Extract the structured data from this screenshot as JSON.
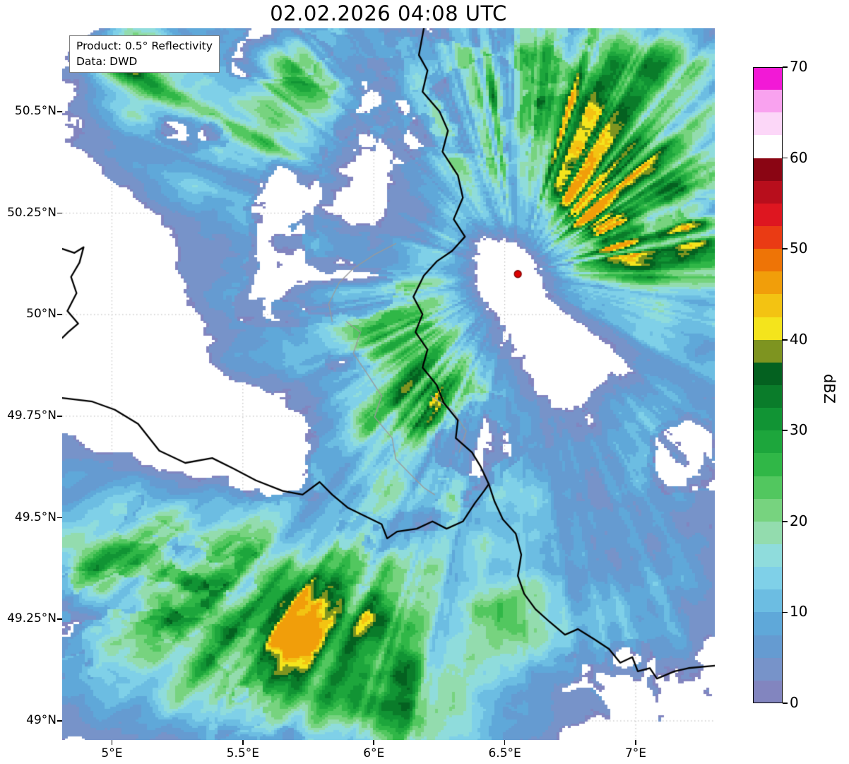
{
  "title": "02.02.2026 04:08 UTC",
  "info_box": {
    "line1": "Product: 0.5° Reflectivity",
    "line2": "Data: DWD"
  },
  "axes": {
    "lon_range": [
      4.81,
      7.302
    ],
    "lat_range": [
      48.953,
      50.705
    ],
    "lat_ticks": [
      {
        "value": 50.5,
        "label": "50.5°N"
      },
      {
        "value": 50.25,
        "label": "50.25°N"
      },
      {
        "value": 50.0,
        "label": "50°N"
      },
      {
        "value": 49.75,
        "label": "49.75°N"
      },
      {
        "value": 49.5,
        "label": "49.5°N"
      },
      {
        "value": 49.25,
        "label": "49.25°N"
      },
      {
        "value": 49.0,
        "label": "49°N"
      }
    ],
    "lon_ticks": [
      {
        "value": 5.0,
        "label": "5°E"
      },
      {
        "value": 5.5,
        "label": "5.5°E"
      },
      {
        "value": 6.0,
        "label": "6°E"
      },
      {
        "value": 6.5,
        "label": "6.5°E"
      },
      {
        "value": 7.0,
        "label": "7°E"
      }
    ]
  },
  "colorbar": {
    "label": "dBZ",
    "min": 0,
    "max": 70,
    "step": 2.5,
    "ticks": [
      0,
      10,
      20,
      30,
      40,
      50,
      60,
      70
    ],
    "colors": [
      "#8285bf",
      "#7793c9",
      "#659bd1",
      "#5fa8d9",
      "#6cbde2",
      "#7fd0e8",
      "#8fdcdc",
      "#93dcae",
      "#77d37f",
      "#52c75f",
      "#30b747",
      "#1da63c",
      "#119434",
      "#0a7c2a",
      "#046120",
      "#7e9420",
      "#f4e41c",
      "#f3c312",
      "#f19e0a",
      "#ee7406",
      "#ea3b14",
      "#de1620",
      "#b80e1c",
      "#8a0513",
      "#ffffff",
      "#fcd7f8",
      "#f9a2ef",
      "#f219d6"
    ]
  },
  "radar_site": {
    "lon": 6.55,
    "lat": 50.1,
    "marker_color": "#dd0000",
    "marker_edge": "#7a0000"
  },
  "map": {
    "background": "#ffffff",
    "grid_color": "#b3b3b3",
    "country_border_color": "#000000",
    "region_border_color": "#9a9a9a"
  },
  "borders": {
    "country": [
      [
        [
          6.191,
          50.705
        ],
        [
          6.172,
          50.639
        ],
        [
          6.205,
          50.601
        ],
        [
          6.186,
          50.549
        ],
        [
          6.251,
          50.5
        ],
        [
          6.283,
          50.453
        ],
        [
          6.262,
          50.401
        ],
        [
          6.321,
          50.343
        ],
        [
          6.34,
          50.288
        ],
        [
          6.305,
          50.235
        ],
        [
          6.348,
          50.192
        ],
        [
          6.299,
          50.157
        ],
        [
          6.24,
          50.131
        ],
        [
          6.191,
          50.096
        ],
        [
          6.151,
          50.044
        ],
        [
          6.186,
          50.001
        ],
        [
          6.159,
          49.957
        ],
        [
          6.205,
          49.914
        ],
        [
          6.186,
          49.87
        ],
        [
          6.24,
          49.827
        ],
        [
          6.267,
          49.783
        ],
        [
          6.321,
          49.74
        ],
        [
          6.313,
          49.696
        ],
        [
          6.375,
          49.661
        ],
        [
          6.407,
          49.627
        ],
        [
          6.439,
          49.583
        ],
        [
          6.461,
          49.54
        ],
        [
          6.493,
          49.496
        ],
        [
          6.542,
          49.461
        ],
        [
          6.563,
          49.409
        ],
        [
          6.55,
          49.357
        ],
        [
          6.574,
          49.313
        ],
        [
          6.617,
          49.275
        ],
        [
          6.671,
          49.244
        ],
        [
          6.73,
          49.212
        ],
        [
          6.779,
          49.226
        ],
        [
          6.844,
          49.2
        ],
        [
          6.898,
          49.177
        ],
        [
          6.941,
          49.143
        ],
        [
          6.987,
          49.157
        ],
        [
          7.008,
          49.122
        ],
        [
          7.054,
          49.13
        ],
        [
          7.081,
          49.104
        ],
        [
          7.148,
          49.122
        ],
        [
          7.202,
          49.13
        ],
        [
          7.302,
          49.136
        ]
      ],
      [
        [
          4.811,
          50.162
        ],
        [
          4.857,
          50.152
        ],
        [
          4.892,
          50.166
        ],
        [
          4.876,
          50.128
        ],
        [
          4.844,
          50.093
        ],
        [
          4.865,
          50.053
        ],
        [
          4.83,
          50.009
        ],
        [
          4.871,
          49.978
        ],
        [
          4.833,
          49.957
        ],
        [
          4.811,
          49.943
        ]
      ],
      [
        [
          4.811,
          49.795
        ],
        [
          4.925,
          49.786
        ],
        [
          5.011,
          49.766
        ],
        [
          5.1,
          49.731
        ],
        [
          5.181,
          49.665
        ],
        [
          5.28,
          49.635
        ],
        [
          5.383,
          49.647
        ],
        [
          5.464,
          49.621
        ],
        [
          5.55,
          49.592
        ],
        [
          5.652,
          49.566
        ],
        [
          5.728,
          49.557
        ],
        [
          5.793,
          49.588
        ],
        [
          5.841,
          49.557
        ],
        [
          5.9,
          49.525
        ],
        [
          5.976,
          49.501
        ],
        [
          6.03,
          49.484
        ],
        [
          6.051,
          49.449
        ],
        [
          6.089,
          49.466
        ],
        [
          6.164,
          49.473
        ],
        [
          6.224,
          49.491
        ],
        [
          6.278,
          49.473
        ],
        [
          6.34,
          49.491
        ],
        [
          6.386,
          49.536
        ],
        [
          6.421,
          49.566
        ],
        [
          6.439,
          49.583
        ]
      ]
    ],
    "region": [
      [
        [
          5.895,
          49.983
        ],
        [
          5.949,
          49.957
        ],
        [
          5.922,
          49.905
        ],
        [
          5.976,
          49.853
        ],
        [
          6.03,
          49.8
        ],
        [
          6.003,
          49.748
        ],
        [
          6.07,
          49.696
        ],
        [
          6.084,
          49.644
        ],
        [
          6.137,
          49.609
        ],
        [
          6.191,
          49.574
        ],
        [
          6.232,
          49.557
        ]
      ],
      [
        [
          6.084,
          50.175
        ],
        [
          6.003,
          50.148
        ],
        [
          5.922,
          50.114
        ],
        [
          5.868,
          50.079
        ],
        [
          5.828,
          50.027
        ],
        [
          5.841,
          49.983
        ]
      ],
      [
        [
          6.218,
          49.8
        ],
        [
          6.299,
          49.766
        ],
        [
          6.353,
          49.713
        ],
        [
          6.326,
          49.661
        ]
      ]
    ]
  },
  "chart_data": {
    "type": "heatmap",
    "product": "0.5° Reflectivity",
    "source": "DWD",
    "timestamp": "02.02.2026 04:08 UTC",
    "units": "dBZ",
    "value_range": [
      0,
      70
    ],
    "extent_lon": [
      4.81,
      7.3
    ],
    "extent_lat": [
      48.95,
      50.71
    ],
    "radar_site": {
      "lon": 6.55,
      "lat": 50.1
    },
    "echo_regions": [
      {
        "lon": 6.95,
        "lat": 50.38,
        "rx": 0.42,
        "ry": 0.38,
        "peak_dbz": 30
      },
      {
        "lon": 6.6,
        "lat": 50.6,
        "rx": 0.5,
        "ry": 0.22,
        "peak_dbz": 26
      },
      {
        "lon": 7.2,
        "lat": 50.15,
        "rx": 0.3,
        "ry": 0.25,
        "peak_dbz": 24
      },
      {
        "lon": 6.85,
        "lat": 50.33,
        "rx": 0.14,
        "ry": 0.08,
        "peak_dbz": 44
      },
      {
        "lon": 7.02,
        "lat": 50.2,
        "rx": 0.12,
        "ry": 0.06,
        "peak_dbz": 43
      },
      {
        "lon": 6.3,
        "lat": 50.45,
        "rx": 0.25,
        "ry": 0.2,
        "peak_dbz": 16
      },
      {
        "lon": 5.4,
        "lat": 50.5,
        "rx": 0.42,
        "ry": 0.25,
        "peak_dbz": 20
      },
      {
        "lon": 5.12,
        "lat": 50.62,
        "rx": 0.18,
        "ry": 0.13,
        "peak_dbz": 26
      },
      {
        "lon": 5.75,
        "lat": 50.6,
        "rx": 0.18,
        "ry": 0.18,
        "peak_dbz": 22
      },
      {
        "lon": 5.8,
        "lat": 50.08,
        "rx": 0.45,
        "ry": 0.18,
        "peak_dbz": 12
      },
      {
        "lon": 6.15,
        "lat": 49.8,
        "rx": 0.32,
        "ry": 0.26,
        "peak_dbz": 31
      },
      {
        "lon": 6.17,
        "lat": 49.78,
        "rx": 0.07,
        "ry": 0.05,
        "peak_dbz": 42
      },
      {
        "lon": 5.5,
        "lat": 49.9,
        "rx": 0.2,
        "ry": 0.12,
        "peak_dbz": 12
      },
      {
        "lon": 5.0,
        "lat": 49.35,
        "rx": 0.38,
        "ry": 0.3,
        "peak_dbz": 27
      },
      {
        "lon": 5.55,
        "lat": 49.22,
        "rx": 0.45,
        "ry": 0.3,
        "peak_dbz": 29
      },
      {
        "lon": 6.05,
        "lat": 49.08,
        "rx": 0.42,
        "ry": 0.28,
        "peak_dbz": 28
      },
      {
        "lon": 6.55,
        "lat": 49.4,
        "rx": 0.22,
        "ry": 0.28,
        "peak_dbz": 20
      },
      {
        "lon": 7.0,
        "lat": 49.32,
        "rx": 0.28,
        "ry": 0.22,
        "peak_dbz": 14
      },
      {
        "lon": 7.05,
        "lat": 49.7,
        "rx": 0.25,
        "ry": 0.18,
        "peak_dbz": 16
      },
      {
        "lon": 6.5,
        "lat": 50.1,
        "rx": 0.13,
        "ry": 0.1,
        "peak_dbz": -18
      },
      {
        "lon": 5.3,
        "lat": 49.75,
        "rx": 0.35,
        "ry": 0.2,
        "peak_dbz": -14
      },
      {
        "lon": 6.8,
        "lat": 49.9,
        "rx": 0.3,
        "ry": 0.15,
        "peak_dbz": -12
      },
      {
        "lon": 4.95,
        "lat": 50.05,
        "rx": 0.25,
        "ry": 0.3,
        "peak_dbz": -10
      },
      {
        "lon": 6.0,
        "lat": 50.3,
        "rx": 0.2,
        "ry": 0.15,
        "peak_dbz": -8
      }
    ]
  }
}
